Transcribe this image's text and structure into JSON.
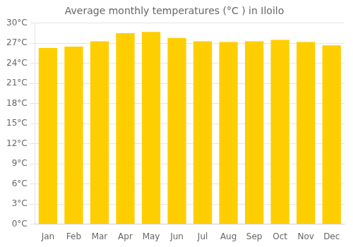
{
  "chart_data": {
    "type": "bar",
    "title": "Average monthly temperatures (°C ) in Iloilo",
    "categories": [
      "Jan",
      "Feb",
      "Mar",
      "Apr",
      "May",
      "Jun",
      "Jul",
      "Aug",
      "Sep",
      "Oct",
      "Nov",
      "Dec"
    ],
    "values": [
      26.3,
      26.5,
      27.3,
      28.5,
      28.7,
      27.8,
      27.3,
      27.2,
      27.3,
      27.5,
      27.2,
      26.7
    ],
    "color": "#FFCE00",
    "ylim": [
      0,
      30
    ],
    "yticks": [
      {
        "value": 0,
        "label": "0°C"
      },
      {
        "value": 3,
        "label": "3°C"
      },
      {
        "value": 6,
        "label": "6°C"
      },
      {
        "value": 9,
        "label": "9°C"
      },
      {
        "value": 12,
        "label": "12°C"
      },
      {
        "value": 15,
        "label": "15°C"
      },
      {
        "value": 18,
        "label": "18°C"
      },
      {
        "value": 21,
        "label": "21°C"
      },
      {
        "value": 24,
        "label": "24°C"
      },
      {
        "value": 27,
        "label": "27°C"
      },
      {
        "value": 30,
        "label": "30°C"
      }
    ],
    "grid": true
  }
}
